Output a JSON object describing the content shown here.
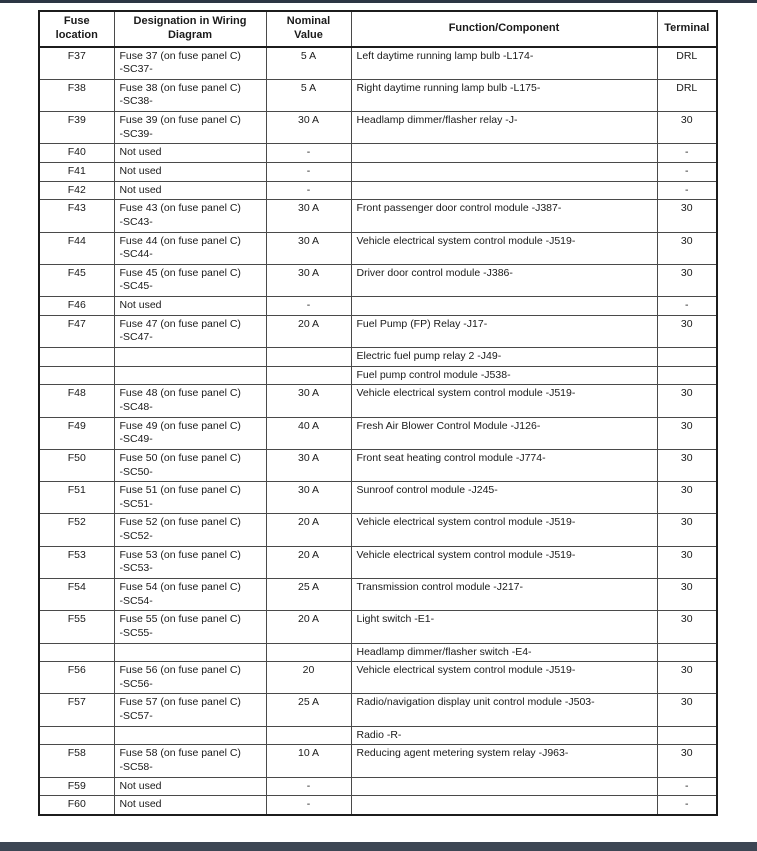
{
  "page": {
    "top_bar_style": "background:#2c3644",
    "bottom_bar_style": "background:#3d4654",
    "colors": {
      "top_bar": "#2c3644",
      "bottom_bar": "#3d4654",
      "table_border": "#1c1c1c",
      "cell_border": "#4a4a4a",
      "text": "#1a1a1a",
      "background": "#ffffff"
    }
  },
  "table": {
    "headers": [
      "Fuse\nlocation",
      "Designation in Wiring\nDiagram",
      "Nominal\nValue",
      "Function/Component",
      "Terminal"
    ],
    "rows": [
      [
        "F37",
        "Fuse 37 (on fuse panel C)\n-SC37-",
        "5 A",
        "Left daytime running lamp bulb -L174-",
        "DRL"
      ],
      [
        "F38",
        "Fuse 38 (on fuse panel C)\n-SC38-",
        "5 A",
        "Right daytime running lamp bulb -L175-",
        "DRL"
      ],
      [
        "F39",
        "Fuse 39 (on fuse panel C)\n-SC39-",
        "30 A",
        "Headlamp dimmer/flasher relay -J-",
        "30"
      ],
      [
        "F40",
        "Not used",
        "-",
        "",
        "-"
      ],
      [
        "F41",
        "Not used",
        "-",
        "",
        "-"
      ],
      [
        "F42",
        "Not used",
        "-",
        "",
        "-"
      ],
      [
        "F43",
        "Fuse 43 (on fuse panel C)\n-SC43-",
        "30 A",
        "Front passenger door control module -J387-",
        "30"
      ],
      [
        "F44",
        "Fuse 44 (on fuse panel C)\n-SC44-",
        "30 A",
        "Vehicle electrical system control module -J519-",
        "30"
      ],
      [
        "F45",
        "Fuse 45 (on fuse panel C)\n-SC45-",
        "30 A",
        "Driver door control module -J386-",
        "30"
      ],
      [
        "F46",
        "Not used",
        "-",
        "",
        "-"
      ],
      [
        "F47",
        "Fuse 47 (on fuse panel C)\n-SC47-",
        "20 A",
        "Fuel Pump (FP) Relay -J17-",
        "30"
      ],
      [
        "",
        "",
        "",
        "Electric fuel pump relay 2 -J49-",
        ""
      ],
      [
        "",
        "",
        "",
        "Fuel pump control module -J538-",
        ""
      ],
      [
        "F48",
        "Fuse 48 (on fuse panel C)\n-SC48-",
        "30 A",
        "Vehicle electrical system control module -J519-",
        "30"
      ],
      [
        "F49",
        "Fuse 49 (on fuse panel C)\n-SC49-",
        "40 A",
        "Fresh Air Blower Control Module -J126-",
        "30"
      ],
      [
        "F50",
        "Fuse 50 (on fuse panel C)\n-SC50-",
        "30 A",
        "Front seat heating control module -J774-",
        "30"
      ],
      [
        "F51",
        "Fuse 51 (on fuse panel C)\n-SC51-",
        "30 A",
        "Sunroof control module -J245-",
        "30"
      ],
      [
        "F52",
        "Fuse 52 (on fuse panel C)\n-SC52-",
        "20 A",
        "Vehicle electrical system control module -J519-",
        "30"
      ],
      [
        "F53",
        "Fuse 53 (on fuse panel C)\n-SC53-",
        "20 A",
        "Vehicle electrical system control module -J519-",
        "30"
      ],
      [
        "F54",
        "Fuse 54 (on fuse panel C)\n-SC54-",
        "25 A",
        "Transmission control module -J217-",
        "30"
      ],
      [
        "F55",
        "Fuse 55 (on fuse panel C)\n-SC55-",
        "20 A",
        "Light switch -E1-",
        "30"
      ],
      [
        "",
        "",
        "",
        "Headlamp dimmer/flasher switch -E4-",
        ""
      ],
      [
        "F56",
        "Fuse 56 (on fuse panel C)\n-SC56-",
        "20",
        "Vehicle electrical system control module -J519-",
        "30"
      ],
      [
        "F57",
        "Fuse 57 (on fuse panel C)\n-SC57-",
        "25 A",
        "Radio/navigation display unit control module -J503-",
        "30"
      ],
      [
        "",
        "",
        "",
        "Radio -R-",
        ""
      ],
      [
        "F58",
        "Fuse 58 (on fuse panel C)\n-SC58-",
        "10 A",
        "Reducing agent metering system relay -J963-",
        "30"
      ],
      [
        "F59",
        "Not used",
        "-",
        "",
        "-"
      ],
      [
        "F60",
        "Not used",
        "-",
        "",
        "-"
      ]
    ]
  }
}
